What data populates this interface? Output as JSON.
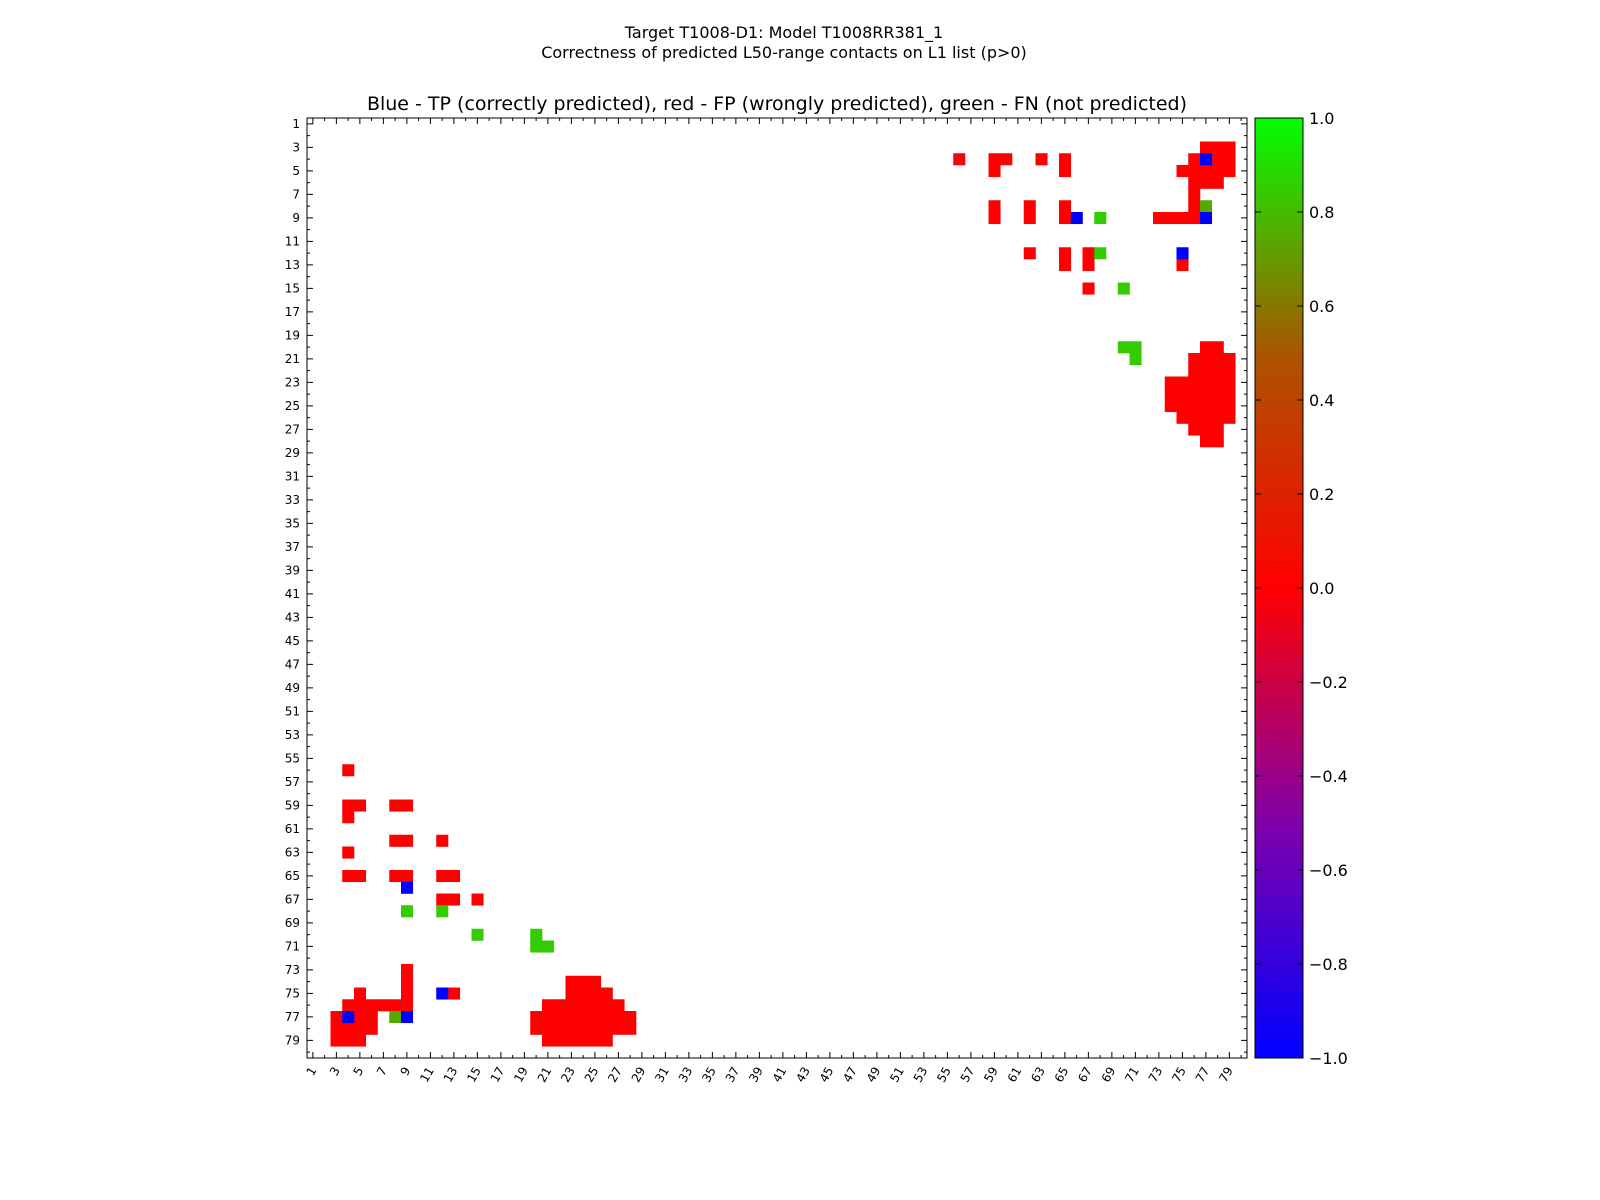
{
  "chart_data": {
    "type": "heatmap",
    "suptitle_line1": "Target T1008-D1: Model T1008RR381_1",
    "suptitle_line2": "Correctness of predicted L50-range contacts on L1 list (p>0)",
    "title": "Blue - TP (correctly predicted), red - FP (wrongly predicted), green - FN (not predicted)",
    "residue_range": [
      1,
      80
    ],
    "x_tick_labels": [
      "1",
      "3",
      "5",
      "7",
      "9",
      "11",
      "13",
      "15",
      "17",
      "19",
      "21",
      "23",
      "25",
      "27",
      "29",
      "31",
      "33",
      "35",
      "37",
      "39",
      "41",
      "43",
      "45",
      "47",
      "49",
      "51",
      "53",
      "55",
      "57",
      "59",
      "61",
      "63",
      "65",
      "67",
      "69",
      "71",
      "73",
      "75",
      "77",
      "79"
    ],
    "y_tick_labels": [
      "1",
      "3",
      "5",
      "7",
      "9",
      "11",
      "13",
      "15",
      "17",
      "19",
      "21",
      "23",
      "25",
      "27",
      "29",
      "31",
      "33",
      "35",
      "37",
      "39",
      "41",
      "43",
      "45",
      "47",
      "49",
      "51",
      "53",
      "55",
      "57",
      "59",
      "61",
      "63",
      "65",
      "67",
      "69",
      "71",
      "73",
      "75",
      "77",
      "79"
    ],
    "colorbar": {
      "min": -1.0,
      "max": 1.0,
      "tick_labels": [
        "1.0",
        "0.8",
        "0.6",
        "0.4",
        "0.2",
        "0.0",
        "−0.2",
        "−0.4",
        "−0.6",
        "−0.8",
        "−1.0"
      ],
      "colors": {
        "blue": "#0000ff",
        "red": "#ff0000",
        "green": "#33cc00",
        "olive": "#55aa00"
      }
    },
    "contacts_value_note": "blue = -1 (TP), red = 0 (FP), green = 0.8 (FN)",
    "fp_red": [
      [
        4,
        56
      ],
      [
        4,
        59
      ],
      [
        4,
        60
      ],
      [
        4,
        63
      ],
      [
        4,
        65
      ],
      [
        5,
        65
      ],
      [
        5,
        59
      ],
      [
        8,
        59
      ],
      [
        9,
        59
      ],
      [
        8,
        62
      ],
      [
        9,
        62
      ],
      [
        8,
        65
      ],
      [
        9,
        65
      ],
      [
        12,
        62
      ],
      [
        12,
        65
      ],
      [
        13,
        65
      ],
      [
        12,
        67
      ],
      [
        13,
        67
      ],
      [
        13,
        75
      ],
      [
        15,
        67
      ],
      [
        3,
        77
      ],
      [
        3,
        78
      ],
      [
        3,
        79
      ],
      [
        4,
        76
      ],
      [
        4,
        78
      ],
      [
        4,
        79
      ],
      [
        5,
        75
      ],
      [
        5,
        76
      ],
      [
        5,
        77
      ],
      [
        5,
        78
      ],
      [
        5,
        79
      ],
      [
        6,
        76
      ],
      [
        6,
        77
      ],
      [
        6,
        78
      ],
      [
        7,
        76
      ],
      [
        8,
        76
      ],
      [
        9,
        73
      ],
      [
        9,
        74
      ],
      [
        9,
        75
      ],
      [
        9,
        76
      ],
      [
        20,
        77
      ],
      [
        20,
        78
      ],
      [
        21,
        76
      ],
      [
        21,
        77
      ],
      [
        21,
        78
      ],
      [
        21,
        79
      ],
      [
        22,
        76
      ],
      [
        22,
        77
      ],
      [
        22,
        78
      ],
      [
        22,
        79
      ],
      [
        23,
        74
      ],
      [
        23,
        75
      ],
      [
        23,
        76
      ],
      [
        23,
        77
      ],
      [
        23,
        78
      ],
      [
        23,
        79
      ],
      [
        24,
        74
      ],
      [
        24,
        75
      ],
      [
        24,
        76
      ],
      [
        24,
        77
      ],
      [
        24,
        78
      ],
      [
        24,
        79
      ],
      [
        25,
        74
      ],
      [
        25,
        75
      ],
      [
        25,
        76
      ],
      [
        25,
        77
      ],
      [
        25,
        78
      ],
      [
        25,
        79
      ],
      [
        26,
        75
      ],
      [
        26,
        76
      ],
      [
        26,
        77
      ],
      [
        26,
        78
      ],
      [
        26,
        79
      ],
      [
        27,
        76
      ],
      [
        27,
        77
      ],
      [
        27,
        78
      ],
      [
        28,
        77
      ],
      [
        28,
        78
      ]
    ],
    "tp_blue": [
      [
        4,
        77
      ],
      [
        9,
        66
      ],
      [
        9,
        77
      ],
      [
        12,
        75
      ]
    ],
    "fn_green": [
      [
        9,
        68
      ],
      [
        12,
        68
      ],
      [
        15,
        70
      ],
      [
        20,
        70
      ],
      [
        20,
        71
      ],
      [
        21,
        71
      ]
    ],
    "fn_olive": [
      [
        8,
        77
      ]
    ]
  }
}
